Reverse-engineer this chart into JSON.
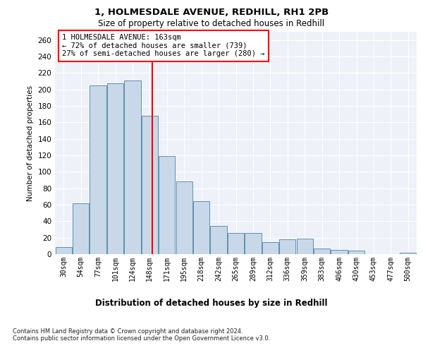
{
  "title1": "1, HOLMESDALE AVENUE, REDHILL, RH1 2PB",
  "title2": "Size of property relative to detached houses in Redhill",
  "xlabel": "Distribution of detached houses by size in Redhill",
  "ylabel": "Number of detached properties",
  "categories": [
    "30sqm",
    "54sqm",
    "77sqm",
    "101sqm",
    "124sqm",
    "148sqm",
    "171sqm",
    "195sqm",
    "218sqm",
    "242sqm",
    "265sqm",
    "289sqm",
    "312sqm",
    "336sqm",
    "359sqm",
    "383sqm",
    "406sqm",
    "430sqm",
    "453sqm",
    "477sqm",
    "500sqm"
  ],
  "values": [
    9,
    62,
    205,
    207,
    211,
    168,
    119,
    88,
    64,
    34,
    26,
    26,
    15,
    18,
    19,
    7,
    5,
    4,
    0,
    0,
    2
  ],
  "bar_color": "#c8d8e8",
  "bar_edge_color": "#6090b0",
  "vline_color": "red",
  "annotation_text": "1 HOLMESDALE AVENUE: 163sqm\n← 72% of detached houses are smaller (739)\n27% of semi-detached houses are larger (280) →",
  "annotation_box_color": "white",
  "annotation_box_edge": "red",
  "ylim": [
    0,
    270
  ],
  "yticks": [
    0,
    20,
    40,
    60,
    80,
    100,
    120,
    140,
    160,
    180,
    200,
    220,
    240,
    260
  ],
  "background_color": "#eef2f8",
  "grid_color": "white",
  "footer": "Contains HM Land Registry data © Crown copyright and database right 2024.\nContains public sector information licensed under the Open Government Licence v3.0."
}
